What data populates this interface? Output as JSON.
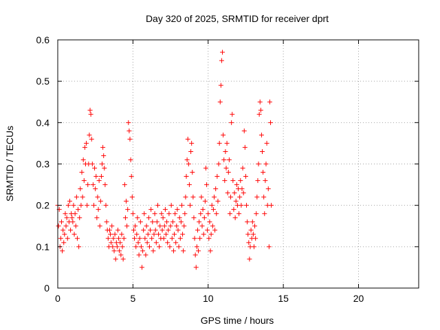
{
  "chart_data": {
    "type": "scatter",
    "title": "Day 320 of 2025, SRMTID for receiver dprt",
    "xlabel": "GPS time / hours",
    "ylabel": "SRMTID / TECUs",
    "xlim": [
      0,
      24
    ],
    "ylim": [
      0,
      0.6
    ],
    "xticks": [
      0,
      5,
      10,
      15,
      20
    ],
    "xtick_labels": [
      "0",
      "5",
      "10",
      "15",
      "20"
    ],
    "yticks": [
      0,
      0.1,
      0.2,
      0.3,
      0.4,
      0.5,
      0.6
    ],
    "ytick_labels": [
      "0",
      "0.1",
      "0.2",
      "0.3",
      "0.4",
      "0.5",
      "0.6"
    ],
    "grid": true,
    "marker": "+",
    "color": "#ff0000",
    "series": [
      {
        "name": "SRMTID",
        "points": [
          [
            0.0,
            0.2
          ],
          [
            0.05,
            0.15
          ],
          [
            0.1,
            0.19
          ],
          [
            0.15,
            0.1
          ],
          [
            0.2,
            0.12
          ],
          [
            0.25,
            0.16
          ],
          [
            0.3,
            0.09
          ],
          [
            0.35,
            0.14
          ],
          [
            0.4,
            0.11
          ],
          [
            0.45,
            0.13
          ],
          [
            0.5,
            0.18
          ],
          [
            0.55,
            0.15
          ],
          [
            0.6,
            0.17
          ],
          [
            0.65,
            0.12
          ],
          [
            0.7,
            0.2
          ],
          [
            0.75,
            0.16
          ],
          [
            0.8,
            0.21
          ],
          [
            0.85,
            0.14
          ],
          [
            0.9,
            0.18
          ],
          [
            0.95,
            0.17
          ],
          [
            1.0,
            0.16
          ],
          [
            1.05,
            0.2
          ],
          [
            1.1,
            0.13
          ],
          [
            1.15,
            0.18
          ],
          [
            1.2,
            0.15
          ],
          [
            1.25,
            0.22
          ],
          [
            1.3,
            0.12
          ],
          [
            1.35,
            0.19
          ],
          [
            1.4,
            0.1
          ],
          [
            1.45,
            0.17
          ],
          [
            1.5,
            0.24
          ],
          [
            1.55,
            0.2
          ],
          [
            1.6,
            0.28
          ],
          [
            1.65,
            0.22
          ],
          [
            1.7,
            0.31
          ],
          [
            1.75,
            0.26
          ],
          [
            1.8,
            0.34
          ],
          [
            1.85,
            0.3
          ],
          [
            1.9,
            0.35
          ],
          [
            1.95,
            0.2
          ],
          [
            2.0,
            0.25
          ],
          [
            2.05,
            0.3
          ],
          [
            2.1,
            0.37
          ],
          [
            2.15,
            0.43
          ],
          [
            2.2,
            0.42
          ],
          [
            2.25,
            0.36
          ],
          [
            2.3,
            0.3
          ],
          [
            2.35,
            0.25
          ],
          [
            2.4,
            0.2
          ],
          [
            2.45,
            0.29
          ],
          [
            2.5,
            0.24
          ],
          [
            2.55,
            0.27
          ],
          [
            2.6,
            0.17
          ],
          [
            2.65,
            0.22
          ],
          [
            2.7,
            0.19
          ],
          [
            2.75,
            0.26
          ],
          [
            2.8,
            0.15
          ],
          [
            2.85,
            0.21
          ],
          [
            2.9,
            0.27
          ],
          [
            2.95,
            0.3
          ],
          [
            3.0,
            0.34
          ],
          [
            3.05,
            0.32
          ],
          [
            3.1,
            0.29
          ],
          [
            3.15,
            0.25
          ],
          [
            3.2,
            0.2
          ],
          [
            3.25,
            0.16
          ],
          [
            3.3,
            0.14
          ],
          [
            3.35,
            0.12
          ],
          [
            3.4,
            0.1
          ],
          [
            3.45,
            0.14
          ],
          [
            3.5,
            0.13
          ],
          [
            3.55,
            0.11
          ],
          [
            3.6,
            0.15
          ],
          [
            3.65,
            0.1
          ],
          [
            3.7,
            0.12
          ],
          [
            3.75,
            0.09
          ],
          [
            3.8,
            0.13
          ],
          [
            3.85,
            0.07
          ],
          [
            3.9,
            0.11
          ],
          [
            3.95,
            0.1
          ],
          [
            4.0,
            0.14
          ],
          [
            4.05,
            0.12
          ],
          [
            4.1,
            0.09
          ],
          [
            4.15,
            0.11
          ],
          [
            4.2,
            0.08
          ],
          [
            4.25,
            0.13
          ],
          [
            4.3,
            0.1
          ],
          [
            4.35,
            0.07
          ],
          [
            4.4,
            0.12
          ],
          [
            4.45,
            0.25
          ],
          [
            4.5,
            0.17
          ],
          [
            4.55,
            0.21
          ],
          [
            4.6,
            0.15
          ],
          [
            4.65,
            0.19
          ],
          [
            4.7,
            0.4
          ],
          [
            4.75,
            0.38
          ],
          [
            4.8,
            0.36
          ],
          [
            4.85,
            0.31
          ],
          [
            4.9,
            0.27
          ],
          [
            4.95,
            0.22
          ],
          [
            5.0,
            0.18
          ],
          [
            5.05,
            0.14
          ],
          [
            5.1,
            0.12
          ],
          [
            5.15,
            0.15
          ],
          [
            5.2,
            0.1
          ],
          [
            5.25,
            0.13
          ],
          [
            5.3,
            0.17
          ],
          [
            5.35,
            0.11
          ],
          [
            5.4,
            0.08
          ],
          [
            5.45,
            0.12
          ],
          [
            5.5,
            0.16
          ],
          [
            5.55,
            0.1
          ],
          [
            5.6,
            0.05
          ],
          [
            5.65,
            0.09
          ],
          [
            5.7,
            0.14
          ],
          [
            5.75,
            0.18
          ],
          [
            5.8,
            0.12
          ],
          [
            5.85,
            0.08
          ],
          [
            5.9,
            0.15
          ],
          [
            5.95,
            0.11
          ],
          [
            6.0,
            0.13
          ],
          [
            6.05,
            0.17
          ],
          [
            6.1,
            0.1
          ],
          [
            6.15,
            0.14
          ],
          [
            6.2,
            0.19
          ],
          [
            6.25,
            0.12
          ],
          [
            6.3,
            0.16
          ],
          [
            6.35,
            0.09
          ],
          [
            6.4,
            0.13
          ],
          [
            6.45,
            0.18
          ],
          [
            6.5,
            0.14
          ],
          [
            6.55,
            0.11
          ],
          [
            6.6,
            0.16
          ],
          [
            6.65,
            0.2
          ],
          [
            6.7,
            0.13
          ],
          [
            6.75,
            0.1
          ],
          [
            6.8,
            0.15
          ],
          [
            6.85,
            0.12
          ],
          [
            6.9,
            0.18
          ],
          [
            6.95,
            0.14
          ],
          [
            7.0,
            0.17
          ],
          [
            7.05,
            0.12
          ],
          [
            7.1,
            0.15
          ],
          [
            7.15,
            0.19
          ],
          [
            7.2,
            0.13
          ],
          [
            7.25,
            0.16
          ],
          [
            7.3,
            0.11
          ],
          [
            7.35,
            0.14
          ],
          [
            7.4,
            0.18
          ],
          [
            7.45,
            0.1
          ],
          [
            7.5,
            0.15
          ],
          [
            7.55,
            0.2
          ],
          [
            7.6,
            0.12
          ],
          [
            7.65,
            0.16
          ],
          [
            7.7,
            0.09
          ],
          [
            7.75,
            0.13
          ],
          [
            7.8,
            0.18
          ],
          [
            7.85,
            0.11
          ],
          [
            7.9,
            0.15
          ],
          [
            7.95,
            0.19
          ],
          [
            8.0,
            0.14
          ],
          [
            8.05,
            0.1
          ],
          [
            8.1,
            0.17
          ],
          [
            8.15,
            0.12
          ],
          [
            8.2,
            0.16
          ],
          [
            8.25,
            0.2
          ],
          [
            8.3,
            0.13
          ],
          [
            8.35,
            0.09
          ],
          [
            8.4,
            0.15
          ],
          [
            8.45,
            0.18
          ],
          [
            8.5,
            0.22
          ],
          [
            8.55,
            0.27
          ],
          [
            8.6,
            0.31
          ],
          [
            8.65,
            0.36
          ],
          [
            8.7,
            0.3
          ],
          [
            8.75,
            0.25
          ],
          [
            8.8,
            0.2
          ],
          [
            8.85,
            0.33
          ],
          [
            8.9,
            0.35
          ],
          [
            8.95,
            0.28
          ],
          [
            9.0,
            0.22
          ],
          [
            9.05,
            0.17
          ],
          [
            9.1,
            0.12
          ],
          [
            9.15,
            0.08
          ],
          [
            9.2,
            0.05
          ],
          [
            9.25,
            0.1
          ],
          [
            9.3,
            0.14
          ],
          [
            9.35,
            0.09
          ],
          [
            9.4,
            0.16
          ],
          [
            9.45,
            0.12
          ],
          [
            9.5,
            0.18
          ],
          [
            9.55,
            0.22
          ],
          [
            9.6,
            0.15
          ],
          [
            9.65,
            0.19
          ],
          [
            9.7,
            0.13
          ],
          [
            9.75,
            0.17
          ],
          [
            9.8,
            0.21
          ],
          [
            9.85,
            0.29
          ],
          [
            9.9,
            0.25
          ],
          [
            9.95,
            0.14
          ],
          [
            10.0,
            0.18
          ],
          [
            10.05,
            0.12
          ],
          [
            10.1,
            0.16
          ],
          [
            10.15,
            0.09
          ],
          [
            10.2,
            0.13
          ],
          [
            10.25,
            0.2
          ],
          [
            10.3,
            0.15
          ],
          [
            10.35,
            0.19
          ],
          [
            10.4,
            0.22
          ],
          [
            10.45,
            0.14
          ],
          [
            10.5,
            0.24
          ],
          [
            10.55,
            0.18
          ],
          [
            10.6,
            0.27
          ],
          [
            10.65,
            0.21
          ],
          [
            10.7,
            0.3
          ],
          [
            10.75,
            0.35
          ],
          [
            10.8,
            0.45
          ],
          [
            10.85,
            0.49
          ],
          [
            10.9,
            0.55
          ],
          [
            10.95,
            0.57
          ],
          [
            11.0,
            0.37
          ],
          [
            11.05,
            0.31
          ],
          [
            11.1,
            0.26
          ],
          [
            11.15,
            0.33
          ],
          [
            11.2,
            0.29
          ],
          [
            11.25,
            0.35
          ],
          [
            11.3,
            0.23
          ],
          [
            11.35,
            0.28
          ],
          [
            11.4,
            0.31
          ],
          [
            11.45,
            0.18
          ],
          [
            11.5,
            0.22
          ],
          [
            11.55,
            0.4
          ],
          [
            11.6,
            0.42
          ],
          [
            11.65,
            0.26
          ],
          [
            11.7,
            0.19
          ],
          [
            11.75,
            0.23
          ],
          [
            11.8,
            0.17
          ],
          [
            11.85,
            0.21
          ],
          [
            11.9,
            0.25
          ],
          [
            11.95,
            0.2
          ],
          [
            12.0,
            0.24
          ],
          [
            12.05,
            0.18
          ],
          [
            12.1,
            0.22
          ],
          [
            12.15,
            0.26
          ],
          [
            12.2,
            0.2
          ],
          [
            12.25,
            0.24
          ],
          [
            12.3,
            0.29
          ],
          [
            12.35,
            0.23
          ],
          [
            12.4,
            0.38
          ],
          [
            12.45,
            0.34
          ],
          [
            12.5,
            0.27
          ],
          [
            12.55,
            0.2
          ],
          [
            12.6,
            0.16
          ],
          [
            12.65,
            0.13
          ],
          [
            12.7,
            0.11
          ],
          [
            12.75,
            0.07
          ],
          [
            12.8,
            0.1
          ],
          [
            12.85,
            0.14
          ],
          [
            12.9,
            0.12
          ],
          [
            12.95,
            0.16
          ],
          [
            13.0,
            0.13
          ],
          [
            13.05,
            0.1
          ],
          [
            13.1,
            0.15
          ],
          [
            13.15,
            0.12
          ],
          [
            13.2,
            0.18
          ],
          [
            13.25,
            0.22
          ],
          [
            13.3,
            0.26
          ],
          [
            13.35,
            0.3
          ],
          [
            13.4,
            0.42
          ],
          [
            13.45,
            0.45
          ],
          [
            13.5,
            0.43
          ],
          [
            13.55,
            0.37
          ],
          [
            13.6,
            0.33
          ],
          [
            13.65,
            0.28
          ],
          [
            13.7,
            0.22
          ],
          [
            13.75,
            0.18
          ],
          [
            13.8,
            0.26
          ],
          [
            13.85,
            0.3
          ],
          [
            13.9,
            0.35
          ],
          [
            13.95,
            0.2
          ],
          [
            14.0,
            0.24
          ],
          [
            14.05,
            0.1
          ],
          [
            14.1,
            0.45
          ],
          [
            14.15,
            0.4
          ],
          [
            14.2,
            0.2
          ]
        ]
      }
    ]
  }
}
